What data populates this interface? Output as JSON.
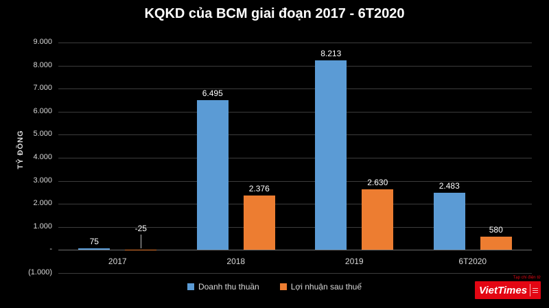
{
  "title": "KQKD của BCM giai đoạn 2017 - 6T2020",
  "chart_data": {
    "type": "bar",
    "categories": [
      "2017",
      "2018",
      "2019",
      "6T2020"
    ],
    "series": [
      {
        "name": "Doanh thu thuần",
        "color": "#5B9BD5",
        "values": [
          75,
          6495,
          8213,
          2483
        ],
        "labels": [
          "75",
          "6.495",
          "8.213",
          "2.483"
        ]
      },
      {
        "name": "Lợi nhuận sau thuế",
        "color": "#ED7D31",
        "values": [
          -25,
          2376,
          2630,
          580
        ],
        "labels": [
          "-25",
          "2.376",
          "2.630",
          "580"
        ]
      }
    ],
    "xlabel": "",
    "ylabel": "TỶ ĐỒNG",
    "ylim": [
      -1000,
      9000
    ],
    "ytick_interval": 1000,
    "ytick_labels": [
      "(1.000)",
      "-",
      "1.000",
      "2.000",
      "3.000",
      "4.000",
      "5.000",
      "6.000",
      "7.000",
      "8.000",
      "9.000"
    ],
    "grid": true,
    "legend_position": "bottom",
    "background": "#000000",
    "text_color": "#d9d9d9"
  },
  "logo": {
    "caption": "Tạp chí điện tử",
    "wordmark": "VietTimes"
  }
}
